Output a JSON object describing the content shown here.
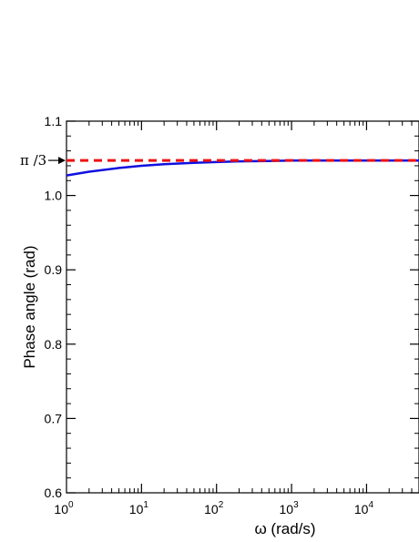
{
  "chart_data": {
    "type": "line",
    "title": "",
    "xlabel": "ω (rad/s)",
    "ylabel": "Phase angle (rad)",
    "x_scale": "log",
    "xlim": [
      1,
      50000
    ],
    "ylim": [
      0.6,
      1.1
    ],
    "x_ticks": [
      {
        "value": 1,
        "base": "10",
        "exp": "0"
      },
      {
        "value": 10,
        "base": "10",
        "exp": "1"
      },
      {
        "value": 100,
        "base": "10",
        "exp": "2"
      },
      {
        "value": 1000,
        "base": "10",
        "exp": "3"
      },
      {
        "value": 10000,
        "base": "10",
        "exp": "4"
      }
    ],
    "y_ticks": [
      {
        "value": 0.6,
        "label": "0.6"
      },
      {
        "value": 0.7,
        "label": "0.7"
      },
      {
        "value": 0.8,
        "label": "0.8"
      },
      {
        "value": 0.9,
        "label": "0.9"
      },
      {
        "value": 1.0,
        "label": "1.0"
      },
      {
        "value": 1.1,
        "label": "1.1"
      }
    ],
    "grid": false,
    "legend": "none",
    "series": [
      {
        "style": "solid",
        "color": "#1010e0",
        "x": [
          1,
          2,
          5,
          10,
          20,
          50,
          100,
          200,
          500,
          1000,
          10000,
          50000
        ],
        "y": [
          1.027,
          1.032,
          1.037,
          1.04,
          1.042,
          1.044,
          1.045,
          1.046,
          1.0465,
          1.047,
          1.047,
          1.047
        ]
      },
      {
        "style": "dashed",
        "color": "#ee1111",
        "x": [
          1,
          50000
        ],
        "y": [
          1.0472,
          1.0472
        ]
      }
    ],
    "annotations": [
      {
        "text": "π /3",
        "y": 1.0472,
        "arrow": "right"
      }
    ]
  }
}
